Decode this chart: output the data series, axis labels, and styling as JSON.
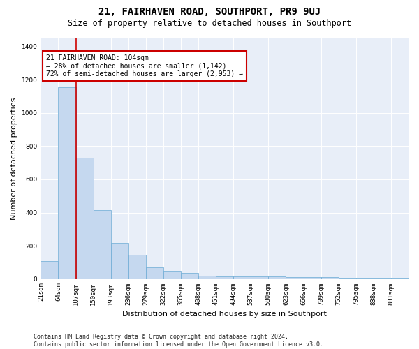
{
  "title": "21, FAIRHAVEN ROAD, SOUTHPORT, PR9 9UJ",
  "subtitle": "Size of property relative to detached houses in Southport",
  "xlabel": "Distribution of detached houses by size in Southport",
  "ylabel": "Number of detached properties",
  "categories": [
    "21sqm",
    "64sqm",
    "107sqm",
    "150sqm",
    "193sqm",
    "236sqm",
    "279sqm",
    "322sqm",
    "365sqm",
    "408sqm",
    "451sqm",
    "494sqm",
    "537sqm",
    "580sqm",
    "623sqm",
    "666sqm",
    "709sqm",
    "752sqm",
    "795sqm",
    "838sqm",
    "881sqm"
  ],
  "bar_heights": [
    107,
    1155,
    730,
    415,
    215,
    145,
    70,
    48,
    35,
    20,
    15,
    15,
    15,
    15,
    10,
    10,
    10,
    5,
    5,
    5,
    5
  ],
  "bar_color": "#c5d8ef",
  "bar_edge_color": "#6aaad4",
  "vline_color": "#cc0000",
  "vline_position": 1.5,
  "ylim": [
    0,
    1450
  ],
  "yticks": [
    0,
    200,
    400,
    600,
    800,
    1000,
    1200,
    1400
  ],
  "annotation_text": "21 FAIRHAVEN ROAD: 104sqm\n← 28% of detached houses are smaller (1,142)\n72% of semi-detached houses are larger (2,953) →",
  "annotation_box_color": "#ffffff",
  "annotation_box_edge_color": "#cc0000",
  "footer_text": "Contains HM Land Registry data © Crown copyright and database right 2024.\nContains public sector information licensed under the Open Government Licence v3.0.",
  "fig_bg_color": "#ffffff",
  "plot_bg_color": "#e8eef8",
  "grid_color": "#ffffff",
  "title_fontsize": 10,
  "subtitle_fontsize": 8.5,
  "axis_label_fontsize": 8,
  "tick_fontsize": 6.5,
  "annotation_fontsize": 7,
  "footer_fontsize": 6
}
